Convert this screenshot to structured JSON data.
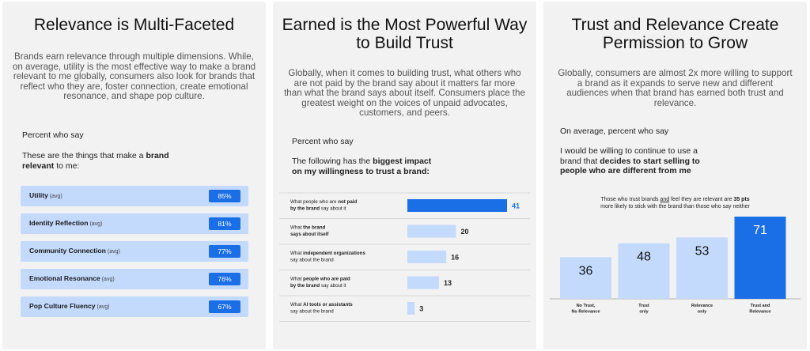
{
  "panel1": {
    "title": "Relevance is Multi-Faceted",
    "description": "Brands earn relevance through multiple dimensions. While, on average, utility is the most effective way to make a brand relevant to me globally, consumers also look for brands that reflect who they are, foster connection, create emotional resonance, and shape pop culture.",
    "measure": "Percent who say",
    "question_plain": "These are the things that make a",
    "question_bold": "brand relevant",
    "question_end": "to me:"
  },
  "panel2": {
    "title_line1": "Earned is the Most Powerful Way",
    "title_line2": "to Build Trust",
    "description": "Globally, when it comes to building trust, what others who are not paid by the brand say about it matters far more than what the brand says about itself. Consumers place the greatest weight on the voices of unpaid advocates, customers, and peers.",
    "measure": "Percent who say",
    "question_plain": "The following has the",
    "question_bold1": "biggest impact",
    "question_bold2": "on my willingness to trust a brand:"
  },
  "panel3": {
    "title_line1": "Trust and Relevance Create",
    "title_line2": "Permission to Grow",
    "description": "Globally, consumers are almost 2x more willing to support a brand as it expands to serve new and different audiences when that brand has earned both trust and relevance.",
    "measure": "On average, percent who say",
    "question_plain1": "I would be willing to continue to use a",
    "question_plain2": "brand that",
    "question_bold1": "decides to start selling to",
    "question_bold2": "people who are different from me",
    "note_line1_a": "Those who trust brands",
    "note_line1_b": "and",
    "note_line1_c": "feel they are relevant are",
    "note_bold": "35 pts",
    "note_line2": "more likely to stick with the brand than those who say neither"
  },
  "chart_data": [
    {
      "type": "bar",
      "orientation": "horizontal",
      "categories": [
        "Utility",
        "Identity Reflection",
        "Community Connection",
        "Emotional Resonance",
        "Pop Culture Fluency"
      ],
      "qualifiers": [
        "(avg)",
        "(avg)",
        "(avg)",
        "(avg)",
        "(avg)"
      ],
      "values": [
        85,
        81,
        77,
        76,
        67
      ],
      "value_labels": [
        "85%",
        "81%",
        "77%",
        "76%",
        "67%"
      ]
    },
    {
      "type": "bar",
      "orientation": "horizontal",
      "categories": [
        {
          "parts": [
            [
              "What people who are ",
              false
            ],
            [
              "not paid",
              true
            ]
          ],
          "parts2": [
            [
              "by the brand",
              true
            ],
            [
              " say about it",
              false
            ]
          ]
        },
        {
          "parts": [
            [
              "What ",
              false
            ],
            [
              "the brand",
              true
            ]
          ],
          "parts2": [
            [
              "says about itself",
              true
            ]
          ]
        },
        {
          "parts": [
            [
              "What ",
              false
            ],
            [
              "independent organizations",
              true
            ]
          ],
          "parts2": [
            [
              "say about the brand",
              false
            ]
          ]
        },
        {
          "parts": [
            [
              "What ",
              false
            ],
            [
              "people who are paid",
              true
            ]
          ],
          "parts2": [
            [
              "by the brand",
              true
            ],
            [
              " say about it",
              false
            ]
          ]
        },
        {
          "parts": [
            [
              "What ",
              false
            ],
            [
              "AI tools or assistants",
              true
            ]
          ],
          "parts2": [
            [
              "say about the brand",
              false
            ]
          ]
        }
      ],
      "values": [
        41,
        20,
        16,
        13,
        3
      ],
      "highlight_index": 0,
      "colors": {
        "highlight": "#1a6ee6",
        "normal": "#c3dafd"
      }
    },
    {
      "type": "bar",
      "orientation": "vertical",
      "categories": [
        [
          "No Trust,",
          "No Relevance"
        ],
        [
          "Trust",
          "only"
        ],
        [
          "Relevance",
          "only"
        ],
        [
          "Trust and",
          "Relevance"
        ]
      ],
      "values": [
        36,
        48,
        53,
        71
      ],
      "highlight_index": 3,
      "colors": {
        "highlight": "#1a6ee6",
        "normal": "#c3dafd"
      }
    }
  ]
}
